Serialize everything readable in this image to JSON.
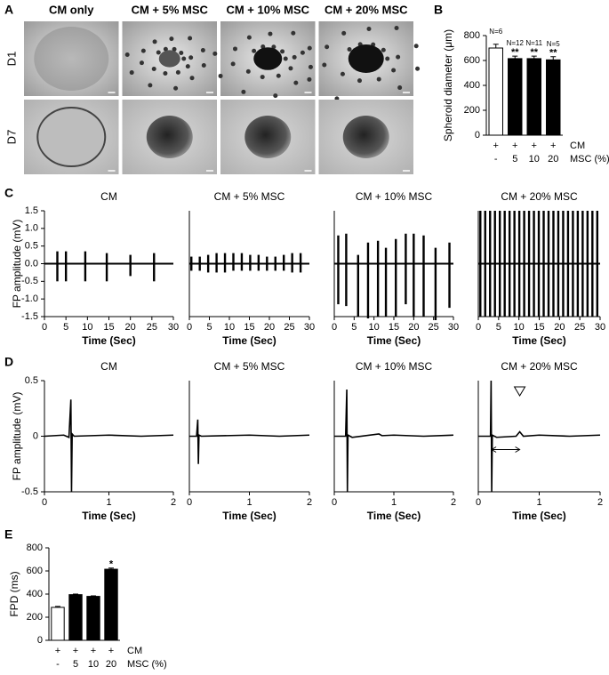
{
  "panels": [
    "A",
    "B",
    "C",
    "D",
    "E"
  ],
  "image_grid": {
    "columns": [
      "CM only",
      "CM + 5% MSC",
      "CM + 10% MSC",
      "CM + 20% MSC"
    ],
    "rows": [
      "D1",
      "D7"
    ]
  },
  "chart_data": [
    {
      "type": "bar",
      "ylabel": "Spheroid diameter (μm)",
      "rows": [
        {
          "label": "CM",
          "values": [
            "+",
            "+",
            "+",
            "+"
          ]
        },
        {
          "label": "MSC (%)",
          "values": [
            "-",
            "5",
            "10",
            "20"
          ]
        }
      ],
      "values": [
        700,
        615,
        615,
        605
      ],
      "errors": [
        30,
        20,
        20,
        25
      ],
      "colors": [
        "#ffffff",
        "#000000",
        "#000000",
        "#000000"
      ],
      "n_labels": [
        "N=6",
        "N=12",
        "N=11",
        "N=5"
      ],
      "significance": [
        null,
        "**",
        "**",
        "**"
      ],
      "ylim": [
        0,
        800
      ],
      "yticks": [
        0,
        200,
        400,
        600,
        800
      ]
    },
    {
      "type": "spikes",
      "title": "CM",
      "xlabel": "Time (Sec)",
      "ylabel": "FP amplitude (mV)",
      "x": [
        3,
        5,
        9.5,
        14.5,
        20,
        25.5
      ],
      "upper": [
        0.35,
        0.35,
        0.35,
        0.3,
        0.25,
        0.3
      ],
      "lower": [
        -0.5,
        -0.5,
        -0.5,
        -0.5,
        -0.35,
        -0.5
      ],
      "xlim": [
        0,
        30
      ],
      "xticks": [
        0,
        5,
        10,
        15,
        20,
        25,
        30
      ],
      "ylim": [
        -1.5,
        1.5
      ],
      "yticks": [
        1.5,
        {
          "value": 1,
          "label": "1.0"
        },
        0.5,
        {
          "value": 0,
          "label": "0.0"
        },
        -0.5,
        {
          "value": -1,
          "label": "-1.0"
        },
        -1.5
      ]
    },
    {
      "type": "spikes",
      "title": "CM + 5% MSC",
      "xlabel": "Time (Sec)",
      "x": [
        0.5,
        2.6,
        4.7,
        6.8,
        8.9,
        11,
        13.1,
        15.2,
        17.3,
        19.4,
        21.5,
        23.6,
        25.7,
        27.8
      ],
      "upper": [
        0.2,
        0.2,
        0.25,
        0.3,
        0.3,
        0.3,
        0.3,
        0.25,
        0.25,
        0.2,
        0.2,
        0.25,
        0.3,
        0.3
      ],
      "lower": [
        -0.2,
        -0.2,
        -0.25,
        -0.25,
        -0.25,
        -0.2,
        -0.2,
        -0.2,
        -0.2,
        -0.2,
        -0.2,
        -0.2,
        -0.25,
        -0.25
      ],
      "xlim": [
        0,
        30
      ],
      "xticks": [
        0,
        5,
        10,
        15,
        20,
        25,
        30
      ],
      "ylim": [
        -1.5,
        1.5
      ]
    },
    {
      "type": "spikes",
      "title": "CM + 10% MSC",
      "xlabel": "Time (Sec)",
      "x": [
        1,
        3,
        6,
        8.5,
        11,
        13,
        15.5,
        18,
        20,
        22.5,
        25.5,
        29
      ],
      "upper": [
        0.8,
        0.85,
        0.25,
        0.6,
        0.65,
        0.45,
        0.7,
        0.85,
        0.85,
        0.8,
        0.45,
        0.6
      ],
      "lower": [
        -1.15,
        -1.2,
        -1.5,
        -1.55,
        -1.5,
        -1.5,
        -1.5,
        -1.15,
        -1.5,
        -1.5,
        -1.6,
        -1.25
      ],
      "xlim": [
        0,
        30
      ],
      "xticks": [
        0,
        5,
        10,
        15,
        20,
        25,
        30
      ],
      "ylim": [
        -1.5,
        1.5
      ]
    },
    {
      "type": "spikes",
      "title": "CM + 20% MSC",
      "xlabel": "Time (Sec)",
      "x": [
        0.5,
        1.7,
        2.9,
        4.1,
        5.3,
        6.5,
        7.7,
        8.9,
        10.1,
        11.3,
        12.5,
        13.7,
        14.9,
        16.1,
        17.3,
        18.5,
        19.7,
        20.9,
        22.1,
        23.3,
        24.5,
        25.7,
        26.9,
        28.1,
        29.3
      ],
      "upper": [
        1.5,
        1.5,
        1.5,
        1.5,
        1.5,
        1.5,
        1.5,
        1.5,
        1.5,
        1.5,
        1.5,
        1.5,
        1.5,
        1.5,
        1.5,
        1.5,
        1.5,
        1.5,
        1.5,
        1.5,
        1.5,
        1.5,
        1.5,
        1.5,
        1.5
      ],
      "lower": [
        -1.5,
        -1.5,
        -1.5,
        -1.5,
        -1.5,
        -1.5,
        -1.5,
        -1.5,
        -1.5,
        -1.5,
        -1.5,
        -1.5,
        -1.5,
        -1.5,
        -1.5,
        -1.5,
        -1.5,
        -1.5,
        -1.5,
        -1.5,
        -1.5,
        -1.5,
        -1.5,
        -1.5,
        -1.5
      ],
      "xlim": [
        0,
        30
      ],
      "xticks": [
        0,
        5,
        10,
        15,
        20,
        25,
        30
      ],
      "ylim": [
        -1.5,
        1.5
      ]
    },
    {
      "type": "line",
      "title": "CM",
      "xlabel": "Time (Sec)",
      "ylabel": "FP amplitude (mV)",
      "x": [
        0,
        0.3,
        0.38,
        0.41,
        0.42,
        0.43,
        0.46,
        1,
        1.5,
        2
      ],
      "y": [
        0,
        0.01,
        -0.01,
        0.33,
        -0.5,
        0.02,
        0,
        0.01,
        0,
        0.01
      ],
      "xlim": [
        0,
        2
      ],
      "xticks": [
        0,
        1,
        2
      ],
      "ylim": [
        -0.5,
        0.5
      ],
      "yticks": [
        0.5,
        0,
        -0.5
      ]
    },
    {
      "type": "line",
      "title": "CM + 5% MSC",
      "xlabel": "Time (Sec)",
      "x": [
        0,
        0.12,
        0.14,
        0.15,
        0.16,
        0.2,
        1,
        1.5,
        2
      ],
      "y": [
        0,
        0,
        0.15,
        -0.25,
        0.01,
        0,
        0.01,
        0,
        0.01
      ],
      "xlim": [
        0,
        2
      ],
      "xticks": [
        0,
        1,
        2
      ],
      "ylim": [
        -0.5,
        0.5
      ]
    },
    {
      "type": "line",
      "title": "CM + 10% MSC",
      "xlabel": "Time (Sec)",
      "x": [
        0,
        0.19,
        0.21,
        0.22,
        0.23,
        0.3,
        0.75,
        0.8,
        1,
        1.5,
        2
      ],
      "y": [
        0,
        0,
        0.42,
        -0.5,
        0.01,
        -0.01,
        0.02,
        0.005,
        0.01,
        0,
        0.01
      ],
      "xlim": [
        0,
        2
      ],
      "xticks": [
        0,
        1,
        2
      ],
      "ylim": [
        -0.5,
        0.5
      ]
    },
    {
      "type": "line",
      "title": "CM + 20% MSC",
      "xlabel": "Time (Sec)",
      "x": [
        0,
        0.2,
        0.21,
        0.22,
        0.23,
        0.3,
        0.62,
        0.68,
        0.74,
        1,
        1.5,
        2
      ],
      "y": [
        0,
        0,
        0.5,
        -0.5,
        0.01,
        -0.01,
        0,
        0.04,
        0,
        0.01,
        0,
        0.01
      ],
      "xlim": [
        0,
        2
      ],
      "xticks": [
        0,
        1,
        2
      ],
      "ylim": [
        -0.5,
        0.5
      ],
      "marker_x": 0.68,
      "interval": [
        0.22,
        0.68
      ]
    },
    {
      "type": "bar",
      "ylabel": "FPD (ms)",
      "rows": [
        {
          "label": "CM",
          "values": [
            "+",
            "+",
            "+",
            "+"
          ]
        },
        {
          "label": "MSC (%)",
          "values": [
            "-",
            "5",
            "10",
            "20"
          ]
        }
      ],
      "values": [
        285,
        395,
        380,
        615
      ],
      "errors": [
        8,
        5,
        5,
        10
      ],
      "colors": [
        "#ffffff",
        "#000000",
        "#000000",
        "#000000"
      ],
      "significance": [
        null,
        null,
        null,
        "*"
      ],
      "ylim": [
        0,
        800
      ],
      "yticks": [
        0,
        200,
        400,
        600,
        800
      ]
    }
  ]
}
